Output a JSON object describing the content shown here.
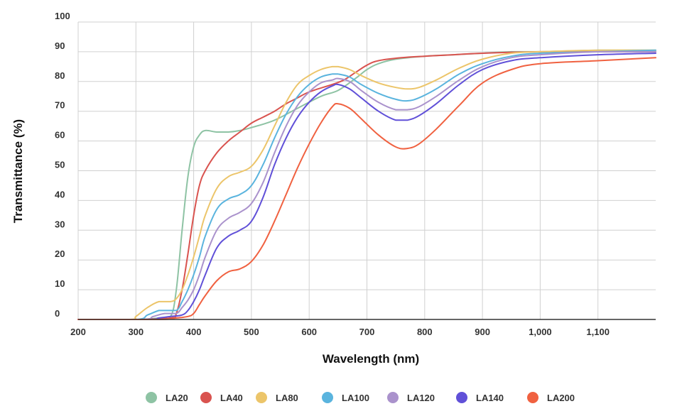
{
  "chart_data": {
    "type": "line",
    "title": "",
    "xlabel": "Wavelength (nm)",
    "ylabel": "Transmittance (%)",
    "xlim": [
      200,
      1200
    ],
    "ylim": [
      0,
      100
    ],
    "x_ticks": [
      200,
      300,
      400,
      500,
      600,
      700,
      800,
      900,
      1000,
      1100
    ],
    "x_tick_labels": [
      "200",
      "300",
      "400",
      "500",
      "600",
      "700",
      "800",
      "900",
      "1,000",
      "1,100"
    ],
    "y_ticks": [
      0,
      10,
      20,
      30,
      40,
      50,
      60,
      70,
      80,
      90,
      100
    ],
    "y_tick_labels": [
      "0",
      "10",
      "20",
      "30",
      "40",
      "50",
      "60",
      "70",
      "80",
      "90",
      "100"
    ],
    "grid": true,
    "legend_position": "bottom",
    "series": [
      {
        "name": "LA20",
        "color": "#8ec3a4",
        "x": [
          200,
          300,
          340,
          360,
          370,
          380,
          390,
          400,
          410,
          420,
          440,
          460,
          480,
          500,
          540,
          580,
          620,
          650,
          680,
          700,
          720,
          750,
          800,
          850,
          900,
          950,
          1000,
          1100,
          1200
        ],
        "y": [
          0,
          0,
          0.5,
          1,
          10,
          30,
          48,
          58,
          62,
          63.5,
          63,
          63,
          63.5,
          64.5,
          67,
          71,
          75,
          77,
          81,
          84,
          86,
          87.5,
          88.5,
          89,
          89.5,
          90,
          90,
          90.5,
          90.5
        ]
      },
      {
        "name": "LA40",
        "color": "#d9534f",
        "x": [
          200,
          300,
          360,
          370,
          380,
          390,
          400,
          410,
          420,
          440,
          460,
          480,
          500,
          520,
          540,
          560,
          580,
          600,
          640,
          660,
          680,
          700,
          720,
          760,
          800,
          850,
          900,
          1000,
          1100,
          1200
        ],
        "y": [
          0,
          0,
          0.5,
          2,
          10,
          22,
          35,
          45,
          50,
          56,
          60,
          63,
          66,
          68,
          70,
          72.5,
          74.5,
          76.5,
          79,
          80.5,
          83,
          85.5,
          87,
          88,
          88.5,
          89,
          89.5,
          90,
          90,
          90
        ]
      },
      {
        "name": "LA80",
        "color": "#ecc56a",
        "x": [
          200,
          290,
          300,
          320,
          340,
          360,
          370,
          380,
          390,
          400,
          410,
          420,
          440,
          460,
          480,
          500,
          520,
          540,
          560,
          580,
          600,
          620,
          640,
          650,
          670,
          690,
          720,
          750,
          770,
          790,
          820,
          860,
          900,
          950,
          1000,
          1100,
          1200
        ],
        "y": [
          0,
          0,
          1,
          4,
          6,
          6,
          7,
          10,
          15,
          21,
          28,
          35,
          44,
          48,
          49.5,
          51.5,
          57,
          65,
          73,
          79,
          82,
          84,
          85,
          85,
          84,
          82,
          79.5,
          78,
          77.5,
          78,
          80.5,
          84.5,
          87.5,
          89.5,
          90,
          90.5,
          90.5
        ]
      },
      {
        "name": "LA100",
        "color": "#5ab4de",
        "x": [
          200,
          300,
          320,
          340,
          350,
          370,
          380,
          390,
          400,
          410,
          420,
          440,
          460,
          480,
          500,
          520,
          540,
          560,
          580,
          600,
          620,
          640,
          650,
          670,
          690,
          720,
          750,
          770,
          790,
          820,
          860,
          900,
          950,
          1000,
          1100,
          1200
        ],
        "y": [
          0,
          0,
          1.5,
          3,
          3,
          3,
          6,
          10,
          15,
          21,
          28,
          37,
          40.5,
          42,
          45,
          52,
          61,
          69,
          75,
          79,
          81.5,
          82.5,
          82.5,
          81.5,
          79,
          76,
          74,
          73.5,
          74.5,
          77.5,
          82.5,
          86,
          88.5,
          89.5,
          90,
          90.5
        ]
      },
      {
        "name": "LA120",
        "color": "#aa92cc",
        "x": [
          200,
          310,
          330,
          350,
          370,
          380,
          390,
          400,
          410,
          420,
          440,
          460,
          480,
          500,
          520,
          540,
          560,
          580,
          600,
          620,
          640,
          650,
          670,
          690,
          720,
          750,
          770,
          790,
          820,
          860,
          900,
          950,
          1000,
          1100,
          1200
        ],
        "y": [
          0,
          0,
          1,
          2,
          2,
          4,
          6.5,
          10,
          15,
          21,
          30,
          34,
          36,
          39,
          46,
          56,
          65,
          72,
          76.5,
          79.5,
          80.5,
          81,
          80,
          77,
          73,
          70.5,
          70.5,
          71.5,
          75,
          80.5,
          85,
          88,
          89,
          90,
          90
        ]
      },
      {
        "name": "LA140",
        "color": "#6050d8",
        "x": [
          200,
          320,
          340,
          360,
          380,
          390,
          400,
          410,
          420,
          440,
          460,
          480,
          500,
          520,
          540,
          560,
          580,
          600,
          620,
          640,
          650,
          670,
          690,
          720,
          750,
          770,
          790,
          820,
          860,
          900,
          950,
          1000,
          1100,
          1200
        ],
        "y": [
          0,
          0,
          0.5,
          1,
          1.5,
          3,
          6,
          10,
          15,
          24,
          28,
          30,
          33,
          41,
          52,
          61,
          68,
          73,
          76.5,
          78.5,
          79,
          77.5,
          74.5,
          70,
          67,
          67,
          68.5,
          72.5,
          79,
          84,
          87,
          88,
          89,
          89.5
        ]
      },
      {
        "name": "LA200",
        "color": "#f06140",
        "x": [
          200,
          340,
          370,
          390,
          400,
          410,
          420,
          440,
          460,
          480,
          500,
          520,
          540,
          560,
          580,
          600,
          620,
          640,
          650,
          670,
          690,
          720,
          750,
          770,
          790,
          820,
          860,
          900,
          950,
          1000,
          1100,
          1200
        ],
        "y": [
          0,
          0,
          0.5,
          1,
          2,
          5,
          8,
          13,
          16,
          17,
          19.5,
          25,
          33,
          42,
          51,
          59,
          66,
          71.5,
          72.5,
          71,
          67.5,
          62,
          58,
          57.5,
          59,
          64,
          72,
          79.5,
          84,
          86,
          87,
          88
        ]
      }
    ]
  }
}
